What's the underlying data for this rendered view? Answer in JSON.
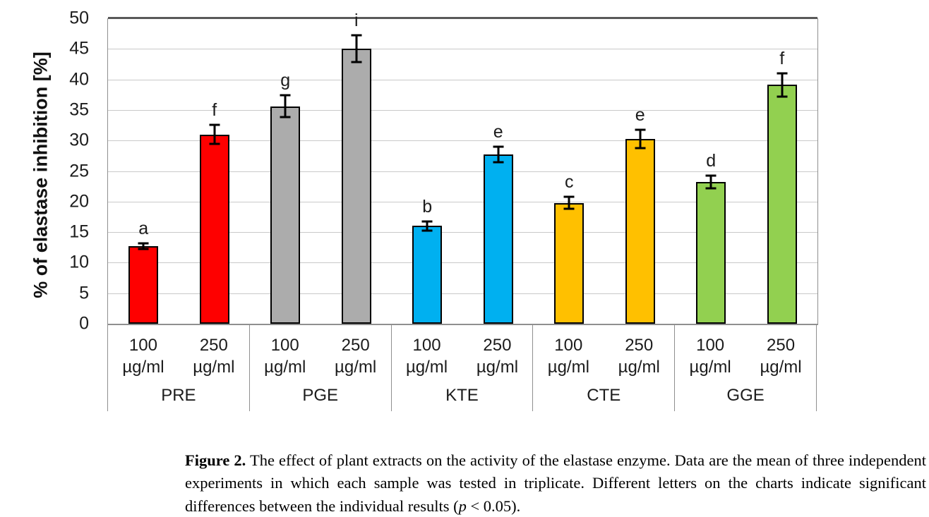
{
  "chart_data": {
    "type": "bar",
    "title": "",
    "xlabel": "",
    "ylabel": "% of elastase inhibition [%]",
    "ylim": [
      0,
      50
    ],
    "yticks": [
      0,
      5,
      10,
      15,
      20,
      25,
      30,
      35,
      40,
      45,
      50
    ],
    "grid": true,
    "legend_position": "none",
    "error_bars": true,
    "groups": [
      {
        "name": "PRE",
        "color": "#FE0000",
        "bars": [
          {
            "concentration": "100",
            "unit": "µg/ml",
            "value": 12.7,
            "error": 0.5,
            "letter": "a"
          },
          {
            "concentration": "250",
            "unit": "µg/ml",
            "value": 31.0,
            "error": 1.6,
            "letter": "f"
          }
        ]
      },
      {
        "name": "PGE",
        "color": "#ACACAC",
        "bars": [
          {
            "concentration": "100",
            "unit": "µg/ml",
            "value": 35.6,
            "error": 1.8,
            "letter": "g"
          },
          {
            "concentration": "250",
            "unit": "µg/ml",
            "value": 45.0,
            "error": 2.2,
            "letter": "i"
          }
        ]
      },
      {
        "name": "KTE",
        "color": "#00B0F0",
        "bars": [
          {
            "concentration": "100",
            "unit": "µg/ml",
            "value": 16.0,
            "error": 0.7,
            "letter": "b"
          },
          {
            "concentration": "250",
            "unit": "µg/ml",
            "value": 27.7,
            "error": 1.3,
            "letter": "e"
          }
        ]
      },
      {
        "name": "CTE",
        "color": "#FFC000",
        "bars": [
          {
            "concentration": "100",
            "unit": "µg/ml",
            "value": 19.8,
            "error": 1.0,
            "letter": "c"
          },
          {
            "concentration": "250",
            "unit": "µg/ml",
            "value": 30.3,
            "error": 1.5,
            "letter": "e"
          }
        ]
      },
      {
        "name": "GGE",
        "color": "#92D050",
        "bars": [
          {
            "concentration": "100",
            "unit": "µg/ml",
            "value": 23.2,
            "error": 1.0,
            "letter": "d"
          },
          {
            "concentration": "250",
            "unit": "µg/ml",
            "value": 39.1,
            "error": 1.9,
            "letter": "f"
          }
        ]
      }
    ],
    "style": {
      "grid_color": "#C9C9C9",
      "top_border_color": "#595959",
      "axis_color": "#8F8F8F",
      "bar_border_color": "#000000",
      "error_bar_color": "#000000",
      "text_color": "#1C1C1C"
    }
  },
  "caption": {
    "label": "Figure 2.",
    "body_1": " The effect of plant extracts on the activity of the elastase enzyme. Data are the mean of three independent experiments in which each sample was tested in triplicate. Different letters on the charts indicate significant differences between the individual results (",
    "p_symbol": "p",
    "body_2": " < 0.05)."
  }
}
